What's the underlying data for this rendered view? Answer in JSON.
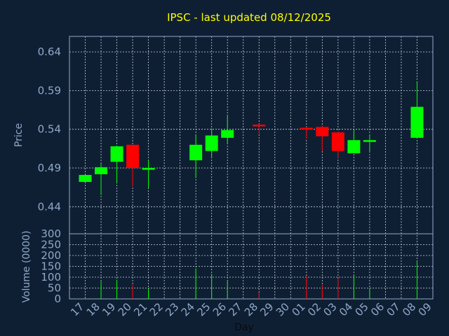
{
  "chart_data": {
    "type": "candlestick",
    "title": "IPSC - last updated 08/12/2025",
    "xlabel": "Day",
    "ylabel_price": "Price",
    "ylabel_volume": "Volume (0000)",
    "price_ylim": [
      0.405,
      0.66
    ],
    "price_ticks": [
      "0.64",
      "0.59",
      "0.54",
      "0.49",
      "0.44"
    ],
    "volume_ylim": [
      0,
      300
    ],
    "volume_ticks": [
      "300",
      "250",
      "200",
      "150",
      "100",
      "50",
      "0"
    ],
    "x_ticks": [
      "17",
      "18",
      "19",
      "20",
      "21",
      "22",
      "23",
      "24",
      "25",
      "26",
      "27",
      "28",
      "29",
      "30",
      "01",
      "02",
      "03",
      "04",
      "05",
      "06",
      "07",
      "08",
      "09"
    ],
    "grid": true,
    "colors": {
      "up": "#00ff00",
      "down": "#ff0000",
      "background": "#0f1f33",
      "grid": "#c8d0dc",
      "text": "#8fa8c8",
      "title": "#ffff00"
    },
    "candles": [
      {
        "day": "17",
        "open": 0.472,
        "high": 0.481,
        "low": 0.472,
        "close": 0.481,
        "volume": 0
      },
      {
        "day": "18",
        "open": 0.482,
        "high": 0.496,
        "low": 0.455,
        "close": 0.491,
        "volume": 80
      },
      {
        "day": "19",
        "open": 0.498,
        "high": 0.519,
        "low": 0.471,
        "close": 0.518,
        "volume": 88
      },
      {
        "day": "20",
        "open": 0.52,
        "high": 0.52,
        "low": 0.466,
        "close": 0.49,
        "volume": 65
      },
      {
        "day": "21",
        "open": 0.489,
        "high": 0.5,
        "low": 0.464,
        "close": 0.49,
        "volume": 50
      },
      {
        "day": "24",
        "open": 0.5,
        "high": 0.533,
        "low": 0.477,
        "close": 0.52,
        "volume": 140
      },
      {
        "day": "25",
        "open": 0.512,
        "high": 0.541,
        "low": 0.504,
        "close": 0.532,
        "volume": 115
      },
      {
        "day": "26",
        "open": 0.529,
        "high": 0.558,
        "low": 0.522,
        "close": 0.539,
        "volume": 85
      },
      {
        "day": "28",
        "open": 0.546,
        "high": 0.547,
        "low": 0.534,
        "close": 0.544,
        "volume": 30
      },
      {
        "day": "01",
        "open": 0.542,
        "high": 0.543,
        "low": 0.528,
        "close": 0.54,
        "volume": 105
      },
      {
        "day": "02",
        "open": 0.543,
        "high": 0.545,
        "low": 0.512,
        "close": 0.531,
        "volume": 65
      },
      {
        "day": "03",
        "open": 0.536,
        "high": 0.537,
        "low": 0.503,
        "close": 0.512,
        "volume": 95
      },
      {
        "day": "04",
        "open": 0.509,
        "high": 0.539,
        "low": 0.509,
        "close": 0.526,
        "volume": 110
      },
      {
        "day": "05",
        "open": 0.524,
        "high": 0.533,
        "low": 0.511,
        "close": 0.526,
        "volume": 50
      },
      {
        "day": "08",
        "open": 0.529,
        "high": 0.602,
        "low": 0.528,
        "close": 0.569,
        "volume": 170
      }
    ]
  }
}
